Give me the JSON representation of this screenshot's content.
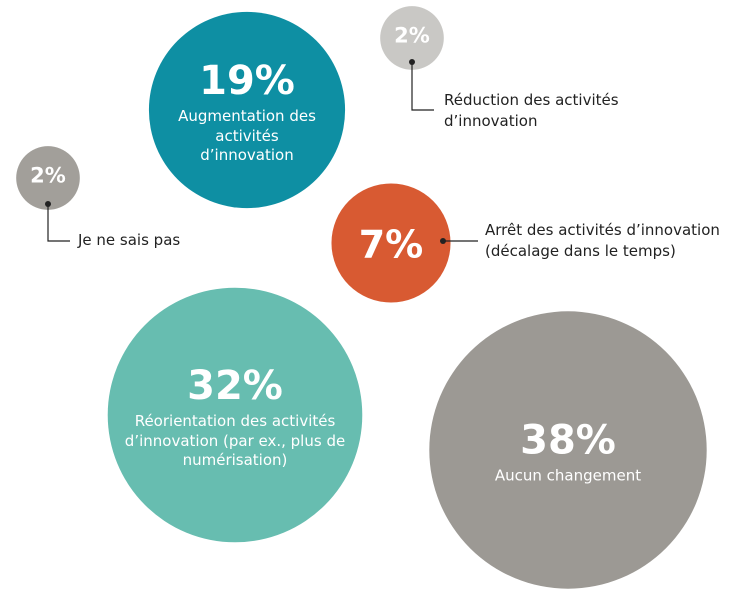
{
  "chart_data": {
    "type": "bubble",
    "categories": [
      "Augmentation des activités d’innovation",
      "Réduction des activités d’innovation",
      "Je ne sais pas",
      "Arrêt des activités d’innovation (décalage dans le temps)",
      "Réorientation des activités d’innovation (par ex., plus de numérisation)",
      "Aucun changement"
    ],
    "values": [
      19,
      2,
      2,
      7,
      32,
      38
    ],
    "value_labels": [
      "19%",
      "2%",
      "2%",
      "7%",
      "32%",
      "38%"
    ],
    "colors": [
      "#0e8fa3",
      "#c9c8c5",
      "#a29f9a",
      "#d85a32",
      "#67bdb0",
      "#9c9994"
    ]
  }
}
